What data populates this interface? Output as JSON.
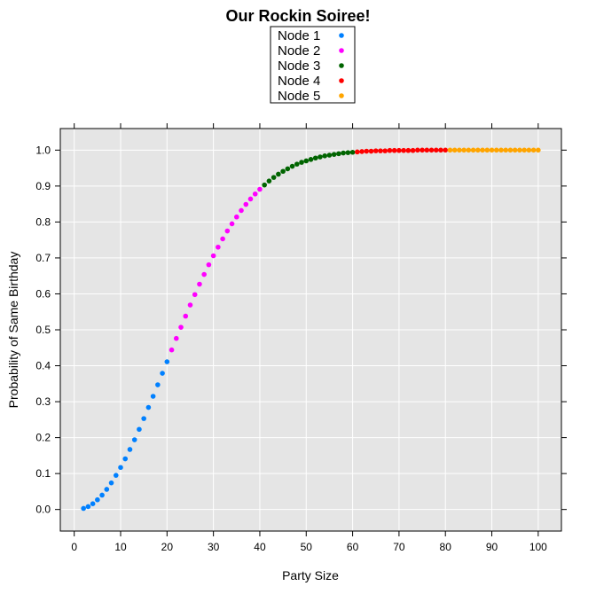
{
  "chart_data": {
    "type": "scatter",
    "title": "Our Rockin Soiree!",
    "xlabel": "Party Size",
    "ylabel": "Probability of Same Birthday",
    "xlim": [
      -3,
      105
    ],
    "ylim": [
      -0.06,
      1.06
    ],
    "xticks": [
      0,
      10,
      20,
      30,
      40,
      50,
      60,
      70,
      80,
      90,
      100
    ],
    "yticks": [
      0.0,
      0.1,
      0.2,
      0.3,
      0.4,
      0.5,
      0.6,
      0.7,
      0.8,
      0.9,
      1.0
    ],
    "ytick_labels": [
      "0.0",
      "0.1",
      "0.2",
      "0.3",
      "0.4",
      "0.5",
      "0.6",
      "0.7",
      "0.8",
      "0.9",
      "1.0"
    ],
    "grid": true,
    "legend_position": "top-center",
    "series": [
      {
        "name": "Node 1",
        "color": "#0080ff",
        "x": [
          2,
          3,
          4,
          5,
          6,
          7,
          8,
          9,
          10,
          11,
          12,
          13,
          14,
          15,
          16,
          17,
          18,
          19,
          20
        ],
        "y": [
          0.003,
          0.008,
          0.016,
          0.027,
          0.04,
          0.056,
          0.074,
          0.095,
          0.117,
          0.141,
          0.167,
          0.194,
          0.223,
          0.253,
          0.284,
          0.315,
          0.347,
          0.379,
          0.411
        ]
      },
      {
        "name": "Node 2",
        "color": "#ff00ff",
        "x": [
          21,
          22,
          23,
          24,
          25,
          26,
          27,
          28,
          29,
          30,
          31,
          32,
          33,
          34,
          35,
          36,
          37,
          38,
          39,
          40
        ],
        "y": [
          0.444,
          0.476,
          0.507,
          0.538,
          0.569,
          0.598,
          0.627,
          0.654,
          0.681,
          0.706,
          0.73,
          0.753,
          0.775,
          0.795,
          0.814,
          0.832,
          0.849,
          0.864,
          0.878,
          0.891
        ]
      },
      {
        "name": "Node 3",
        "color": "#006400",
        "x": [
          41,
          42,
          43,
          44,
          45,
          46,
          47,
          48,
          49,
          50,
          51,
          52,
          53,
          54,
          55,
          56,
          57,
          58,
          59,
          60
        ],
        "y": [
          0.903,
          0.914,
          0.924,
          0.933,
          0.941,
          0.948,
          0.955,
          0.961,
          0.966,
          0.97,
          0.974,
          0.978,
          0.981,
          0.984,
          0.986,
          0.988,
          0.99,
          0.992,
          0.993,
          0.994
        ]
      },
      {
        "name": "Node 4",
        "color": "#ff0000",
        "x": [
          61,
          62,
          63,
          64,
          65,
          66,
          67,
          68,
          69,
          70,
          71,
          72,
          73,
          74,
          75,
          76,
          77,
          78,
          79,
          80
        ],
        "y": [
          0.995,
          0.996,
          0.997,
          0.997,
          0.998,
          0.998,
          0.998,
          0.999,
          0.999,
          0.999,
          0.999,
          0.999,
          0.999,
          1.0,
          1.0,
          1.0,
          1.0,
          1.0,
          1.0,
          1.0
        ]
      },
      {
        "name": "Node 5",
        "color": "#ffa500",
        "x": [
          81,
          82,
          83,
          84,
          85,
          86,
          87,
          88,
          89,
          90,
          91,
          92,
          93,
          94,
          95,
          96,
          97,
          98,
          99,
          100
        ],
        "y": [
          1.0,
          1.0,
          1.0,
          1.0,
          1.0,
          1.0,
          1.0,
          1.0,
          1.0,
          1.0,
          1.0,
          1.0,
          1.0,
          1.0,
          1.0,
          1.0,
          1.0,
          1.0,
          1.0,
          1.0
        ]
      }
    ]
  }
}
